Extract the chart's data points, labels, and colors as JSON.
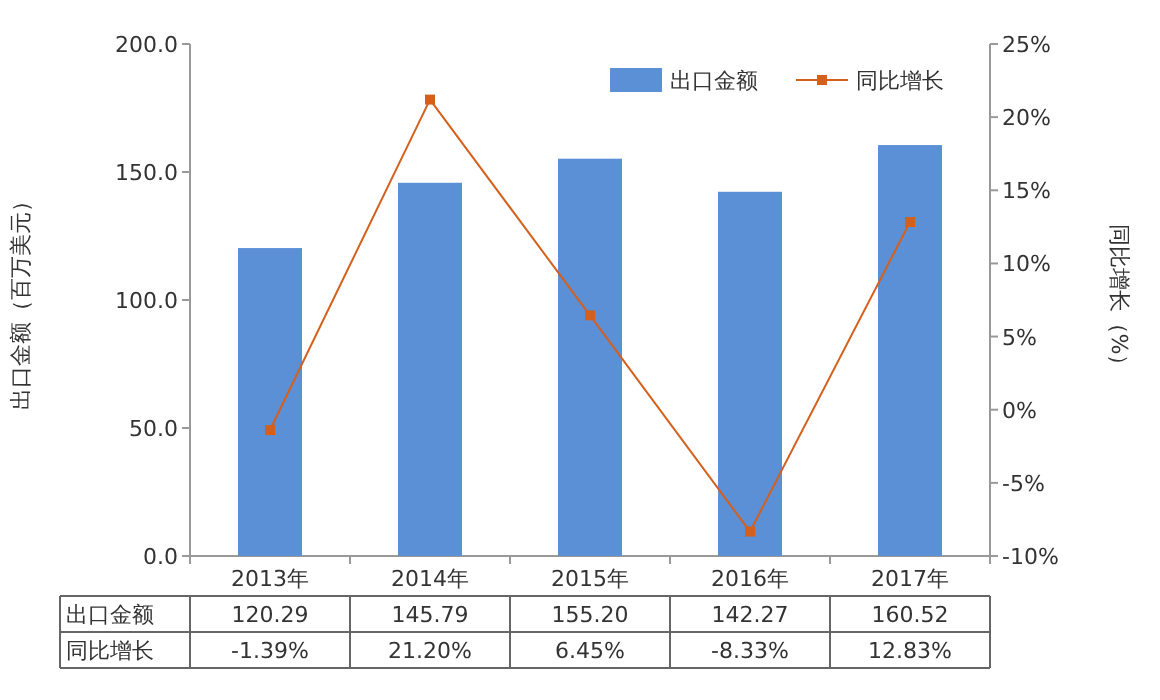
{
  "chart_data": {
    "type": "bar",
    "categories": [
      "2013年",
      "2014年",
      "2015年",
      "2016年",
      "2017年"
    ],
    "ylabel": "出口金额（百万美元）",
    "y2label": "同比增长（%）",
    "ylim": [
      0,
      200
    ],
    "yticks": [
      {
        "value": 0,
        "label": "0.0"
      },
      {
        "value": 50,
        "label": "50.0"
      },
      {
        "value": 100,
        "label": "100.0"
      },
      {
        "value": 150,
        "label": "150.0"
      },
      {
        "value": 200,
        "label": "200.0"
      }
    ],
    "y2lim": [
      -10,
      25
    ],
    "y2ticks": [
      {
        "value": -10,
        "label": "-10%"
      },
      {
        "value": -5,
        "label": "-5%"
      },
      {
        "value": 0,
        "label": "0%"
      },
      {
        "value": 5,
        "label": "5%"
      },
      {
        "value": 10,
        "label": "10%"
      },
      {
        "value": 15,
        "label": "15%"
      },
      {
        "value": 20,
        "label": "20%"
      },
      {
        "value": 25,
        "label": "25%"
      }
    ],
    "legend": "top right",
    "grid": false,
    "series": [
      {
        "name": "出口金额",
        "color": "#5b8fd6",
        "values": [
          120.29,
          145.79,
          155.2,
          142.27,
          160.52
        ],
        "value_labels": [
          "120.29",
          "145.79",
          "155.20",
          "142.27",
          "160.52"
        ]
      },
      {
        "name": "同比增长",
        "type": "line",
        "axis": "y2",
        "color": "#d4601c",
        "marker": "square",
        "values": [
          -1.39,
          21.2,
          6.45,
          -8.33,
          12.83
        ],
        "value_labels": [
          "-1.39%",
          "21.20%",
          "6.45%",
          "-8.33%",
          "12.83%"
        ]
      }
    ]
  }
}
